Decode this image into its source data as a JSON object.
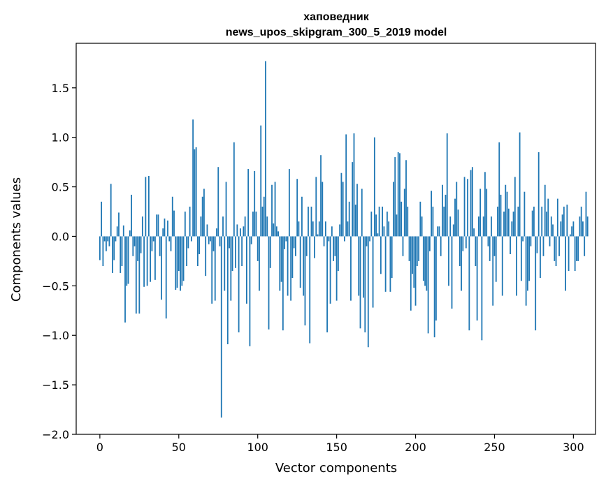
{
  "chart_data": {
    "type": "bar",
    "title": "хаповедник",
    "subtitle": "news_upos_skipgram_300_5_2019 model",
    "xlabel": "Vector components",
    "ylabel": "Components values",
    "xlim": [
      -15,
      314
    ],
    "ylim": [
      -2.0,
      1.95
    ],
    "x_ticks": [
      0,
      50,
      100,
      150,
      200,
      250,
      300
    ],
    "y_ticks": [
      -2.0,
      -1.5,
      -1.0,
      -0.5,
      0.0,
      0.5,
      1.0,
      1.5
    ],
    "x_tick_labels": [
      "0",
      "50",
      "100",
      "150",
      "200",
      "250",
      "300"
    ],
    "y_tick_labels": [
      "−2.0",
      "−1.5",
      "−1.0",
      "−0.5",
      "0.0",
      "0.5",
      "1.0",
      "1.5"
    ],
    "grid": false,
    "bar_color": "#1f77b4",
    "values": [
      -0.24,
      0.35,
      -0.3,
      -0.05,
      -0.15,
      -0.05,
      -0.1,
      0.53,
      -0.37,
      -0.24,
      -0.05,
      0.1,
      0.24,
      -0.37,
      -0.3,
      0.11,
      -0.87,
      -0.5,
      -0.48,
      0.06,
      0.42,
      -0.2,
      -0.1,
      -0.78,
      -0.25,
      -0.78,
      -0.17,
      0.2,
      -0.51,
      0.6,
      -0.5,
      0.61,
      -0.46,
      -0.15,
      -0.05,
      -0.44,
      0.22,
      0.22,
      -0.2,
      -0.64,
      0.08,
      0.18,
      -0.83,
      0.16,
      -0.05,
      -0.15,
      0.4,
      0.26,
      -0.54,
      -0.52,
      -0.35,
      -0.55,
      -0.5,
      -0.45,
      0.25,
      -0.3,
      -0.12,
      0.3,
      -0.05,
      1.18,
      0.88,
      0.9,
      -0.3,
      -0.18,
      0.2,
      0.4,
      0.48,
      -0.4,
      0.12,
      -0.08,
      -0.05,
      -0.68,
      -0.15,
      -0.65,
      0.08,
      0.7,
      -0.1,
      -1.83,
      0.2,
      -0.55,
      0.55,
      -1.09,
      -0.12,
      -0.65,
      -0.35,
      0.95,
      -0.32,
      0.12,
      -0.97,
      0.08,
      -0.3,
      0.1,
      0.2,
      -0.68,
      0.68,
      -1.11,
      -0.08,
      0.25,
      0.66,
      0.25,
      -0.25,
      -0.55,
      1.12,
      0.3,
      0.4,
      1.77,
      0.2,
      -0.94,
      -0.32,
      0.52,
      0.13,
      0.55,
      0.1,
      0.05,
      -0.55,
      -0.46,
      -0.95,
      -0.13,
      -0.05,
      -0.6,
      0.68,
      -0.65,
      -0.42,
      -0.12,
      -0.2,
      0.58,
      0.15,
      -0.52,
      0.4,
      -0.6,
      -0.9,
      -0.2,
      0.3,
      -1.08,
      0.3,
      0.15,
      -0.22,
      0.6,
      0.02,
      0.15,
      0.82,
      0.55,
      -0.1,
      0.15,
      -0.97,
      -0.05,
      -0.68,
      0.1,
      -0.25,
      -0.2,
      -0.65,
      -0.35,
      0.12,
      0.64,
      0.55,
      -0.05,
      1.03,
      0.15,
      0.35,
      -0.65,
      0.75,
      1.04,
      0.32,
      0.53,
      -0.6,
      -0.93,
      0.48,
      -0.62,
      -0.97,
      -0.1,
      -1.12,
      -0.05,
      0.25,
      -0.72,
      1.0,
      0.22,
      0.03,
      0.3,
      -0.38,
      0.3,
      0.1,
      -0.56,
      0.25,
      0.15,
      -0.56,
      -0.42,
      0.55,
      0.8,
      0.22,
      0.85,
      0.84,
      0.35,
      -0.2,
      0.48,
      0.77,
      0.3,
      -0.25,
      -0.75,
      -0.38,
      -0.52,
      -0.7,
      -0.3,
      -0.25,
      0.35,
      0.2,
      -0.45,
      -0.5,
      -0.55,
      -0.98,
      -0.15,
      0.46,
      0.3,
      -1.02,
      -0.85,
      0.1,
      0.1,
      -0.2,
      0.52,
      0.3,
      0.42,
      1.04,
      -0.5,
      0.2,
      -0.73,
      0.12,
      0.38,
      0.55,
      0.27,
      -0.3,
      -0.55,
      -0.15,
      0.6,
      -0.12,
      0.58,
      -0.95,
      0.67,
      0.7,
      0.08,
      -0.3,
      -0.85,
      0.2,
      0.48,
      -1.05,
      0.2,
      0.65,
      0.48,
      -0.1,
      -0.25,
      0.2,
      -0.7,
      -0.2,
      -0.46,
      0.3,
      0.95,
      0.42,
      -0.6,
      0.25,
      0.52,
      0.45,
      0.28,
      -0.18,
      0.15,
      0.25,
      0.6,
      -0.6,
      0.3,
      1.05,
      -0.45,
      -0.05,
      0.45,
      -0.7,
      -0.55,
      -0.45,
      -0.1,
      0.26,
      0.3,
      -0.95,
      -0.17,
      0.85,
      -0.42,
      0.3,
      -0.2,
      0.52,
      0.25,
      0.38,
      -0.1,
      0.2,
      0.12,
      -0.25,
      -0.3,
      0.38,
      -0.2,
      0.15,
      0.22,
      0.3,
      -0.55,
      0.32,
      -0.35,
      0.02,
      0.1,
      0.15,
      -0.35,
      -0.25,
      -0.25,
      0.2,
      0.3,
      0.15,
      -0.2,
      0.45,
      0.2
    ]
  }
}
